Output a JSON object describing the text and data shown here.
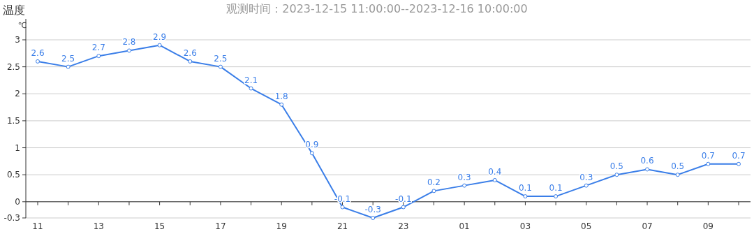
{
  "chart_data": {
    "type": "line",
    "title": "温度",
    "subtitle": "观测时间：2023-12-15 11:00:00--2023-12-16 10:00:00",
    "ylabel": "℃",
    "categories": [
      "11",
      null,
      "13",
      null,
      "15",
      null,
      "17",
      null,
      "19",
      null,
      "21",
      null,
      "23",
      null,
      "01",
      null,
      "03",
      null,
      "05",
      null,
      "07",
      null,
      "09",
      null
    ],
    "series": [
      {
        "color": "#3a7ee8",
        "values": [
          2.6,
          2.5,
          2.7,
          2.8,
          2.9,
          2.6,
          2.5,
          2.1,
          1.8,
          0.9,
          -0.1,
          -0.3,
          -0.1,
          0.2,
          0.3,
          0.4,
          0.1,
          0.1,
          0.3,
          0.5,
          0.6,
          0.5,
          0.7,
          0.7
        ]
      }
    ],
    "ylim": [
      -0.3,
      3
    ],
    "yticks": [
      -0.3,
      0,
      0.5,
      1,
      1.5,
      2,
      2.5,
      3
    ],
    "grid": "y",
    "marker": "circle",
    "data_labels": true
  }
}
